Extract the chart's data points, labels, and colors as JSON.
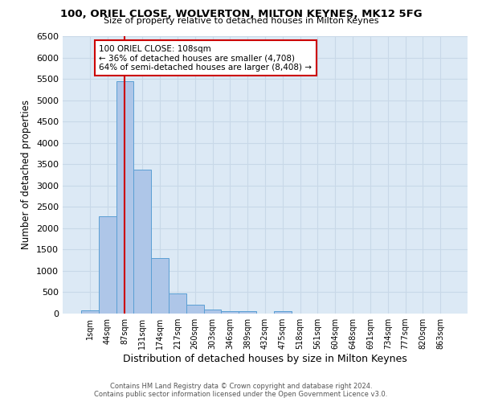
{
  "title": "100, ORIEL CLOSE, WOLVERTON, MILTON KEYNES, MK12 5FG",
  "subtitle": "Size of property relative to detached houses in Milton Keynes",
  "xlabel": "Distribution of detached houses by size in Milton Keynes",
  "ylabel": "Number of detached properties",
  "bin_labels": [
    "1sqm",
    "44sqm",
    "87sqm",
    "131sqm",
    "174sqm",
    "217sqm",
    "260sqm",
    "303sqm",
    "346sqm",
    "389sqm",
    "432sqm",
    "475sqm",
    "518sqm",
    "561sqm",
    "604sqm",
    "648sqm",
    "691sqm",
    "734sqm",
    "777sqm",
    "820sqm",
    "863sqm"
  ],
  "bar_heights": [
    75,
    2280,
    5450,
    3380,
    1300,
    470,
    210,
    90,
    55,
    55,
    0,
    55,
    0,
    0,
    0,
    0,
    0,
    0,
    0,
    0,
    0
  ],
  "bar_color": "#aec6e8",
  "bar_edge_color": "#5a9fd4",
  "grid_color": "#c8d8e8",
  "background_color": "#dce9f5",
  "annotation_text": "100 ORIEL CLOSE: 108sqm\n← 36% of detached houses are smaller (4,708)\n64% of semi-detached houses are larger (8,408) →",
  "annotation_box_color": "#ffffff",
  "annotation_border_color": "#cc0000",
  "ylim": [
    0,
    6500
  ],
  "yticks": [
    0,
    500,
    1000,
    1500,
    2000,
    2500,
    3000,
    3500,
    4000,
    4500,
    5000,
    5500,
    6000,
    6500
  ],
  "footer_line1": "Contains HM Land Registry data © Crown copyright and database right 2024.",
  "footer_line2": "Contains public sector information licensed under the Open Government Licence v3.0."
}
